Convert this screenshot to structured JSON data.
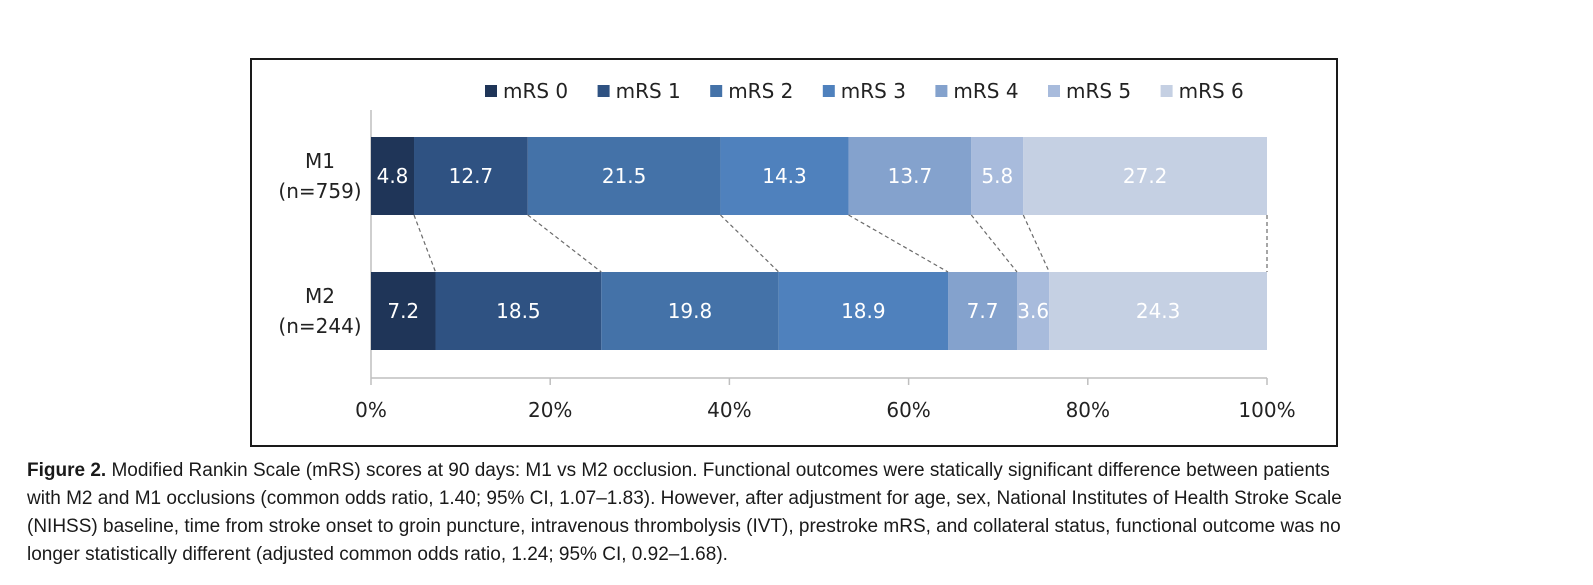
{
  "chart_data": {
    "type": "bar",
    "orientation": "horizontal",
    "stacked": true,
    "categories": [
      "M1\n(n=759)",
      "M2\n(n=244)"
    ],
    "series": [
      {
        "name": "mRS 0",
        "values": [
          4.8,
          7.2
        ],
        "labels": [
          "4.8",
          "7.2"
        ],
        "color": "#1f3558"
      },
      {
        "name": "mRS 1",
        "values": [
          12.7,
          18.5
        ],
        "labels": [
          "12.7",
          "18.5"
        ],
        "color": "#2f5282"
      },
      {
        "name": "mRS 2",
        "values": [
          21.5,
          19.8
        ],
        "labels": [
          "21.5",
          "19.8"
        ],
        "color": "#4472a8"
      },
      {
        "name": "mRS 3",
        "values": [
          14.3,
          18.9
        ],
        "labels": [
          "14.3",
          "18.9"
        ],
        "color": "#4f81bd"
      },
      {
        "name": "mRS 4",
        "values": [
          13.7,
          7.7
        ],
        "labels": [
          "13.7",
          "7.7"
        ],
        "color": "#84a2cd"
      },
      {
        "name": "mRS 5",
        "values": [
          5.8,
          3.6
        ],
        "labels": [
          "5.8",
          "3.6"
        ],
        "color": "#a8bbdc"
      },
      {
        "name": "mRS 6",
        "values": [
          27.2,
          24.3
        ],
        "labels": [
          "27.2",
          "24.3"
        ],
        "color": "#c5d0e3"
      }
    ],
    "x_ticks": [
      "0%",
      "20%",
      "40%",
      "60%",
      "80%",
      "100%"
    ],
    "xlim": [
      0,
      100
    ],
    "legend_position": "top",
    "connector_lines": "dashed",
    "grid": false
  },
  "caption": {
    "label": "Figure 2.",
    "lines": [
      " Modified Rankin Scale (mRS) scores at 90 days: M1 vs M2 occlusion. Functional outcomes were statically significant difference between patients",
      "with M2 and M1 occlusions (common odds ratio, 1.40; 95% CI, 1.07–1.83). However, after adjustment for age, sex, National Institutes of Health Stroke Scale",
      "(NIHSS) baseline, time from stroke onset to groin puncture, intravenous thrombolysis (IVT), prestroke mRS, and collateral status, functional outcome was no",
      "longer statistically different (adjusted common odds ratio, 1.24; 95% CI, 0.92–1.68)."
    ]
  }
}
